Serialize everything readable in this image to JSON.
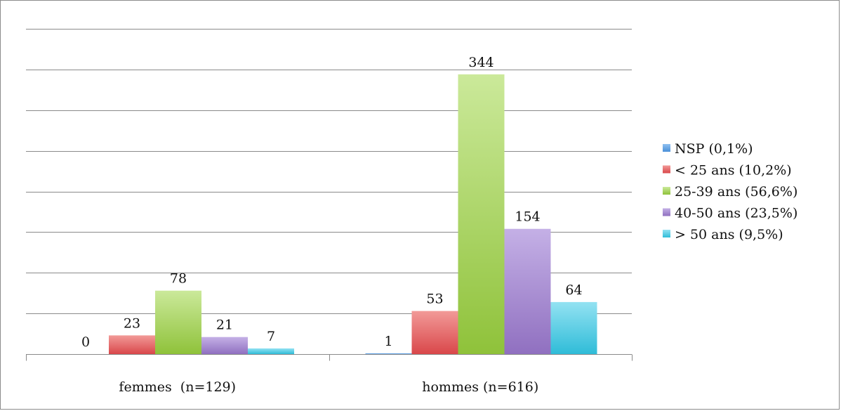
{
  "chart_data": {
    "type": "bar",
    "categories": [
      "femmes  (n=129)",
      "hommes (n=616)"
    ],
    "series": [
      {
        "name": "NSP (0,1%)",
        "values": [
          0,
          1
        ],
        "color": "#4a90d9",
        "color_light": "#8fc0f0"
      },
      {
        "name": "< 25 ans (10,2%)",
        "values": [
          23,
          53
        ],
        "color": "#d9474a",
        "color_light": "#f29a98"
      },
      {
        "name": "25-39 ans (56,6%)",
        "values": [
          78,
          344
        ],
        "color": "#8fc23a",
        "color_light": "#cbe99a"
      },
      {
        "name": "40-50 ans (23,5%)",
        "values": [
          21,
          154
        ],
        "color": "#9070c0",
        "color_light": "#c4b0e6"
      },
      {
        "name": "> 50 ans (9,5%)",
        "values": [
          7,
          64
        ],
        "color": "#2fbcd8",
        "color_light": "#93e2f2"
      }
    ],
    "ylim": [
      0,
      400
    ],
    "gridlines": 7,
    "grid": true,
    "legend": "right",
    "title": "",
    "xlabel": "",
    "ylabel": ""
  }
}
